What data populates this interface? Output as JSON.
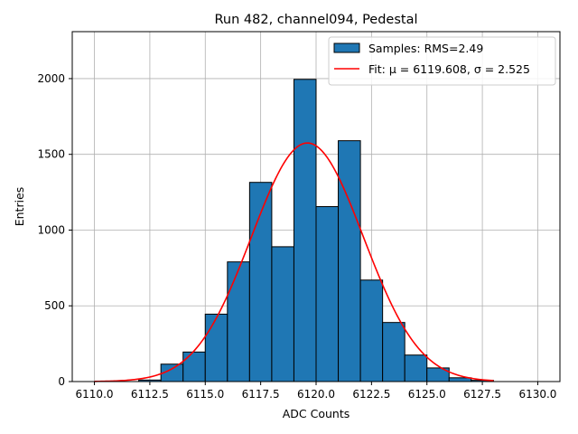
{
  "chart_data": {
    "type": "bar",
    "title": "Run 482, channel094, Pedestal",
    "xlabel": "ADC Counts",
    "ylabel": "Entries",
    "xlim": [
      6109.0,
      6131.0
    ],
    "ylim": [
      0,
      2310
    ],
    "xticks": [
      6110.0,
      6112.5,
      6115.0,
      6117.5,
      6120.0,
      6122.5,
      6125.0,
      6127.5,
      6130.0
    ],
    "xtick_labels": [
      "6110.0",
      "6112.5",
      "6115.0",
      "6117.5",
      "6120.0",
      "6122.5",
      "6125.0",
      "6127.5",
      "6130.0"
    ],
    "yticks": [
      0,
      500,
      1000,
      1500,
      2000
    ],
    "ytick_labels": [
      "0",
      "500",
      "1000",
      "1500",
      "2000"
    ],
    "grid": true,
    "legend_position": "top-right",
    "histogram": {
      "name": "Samples: RMS=2.49",
      "color": "#1f77b4",
      "edge_color": "#000000",
      "bins": [
        {
          "x0": 6112.0,
          "x1": 6113.0,
          "value": 10
        },
        {
          "x0": 6113.0,
          "x1": 6114.0,
          "value": 115
        },
        {
          "x0": 6114.0,
          "x1": 6115.0,
          "value": 195
        },
        {
          "x0": 6115.0,
          "x1": 6116.0,
          "value": 445
        },
        {
          "x0": 6116.0,
          "x1": 6117.0,
          "value": 790
        },
        {
          "x0": 6117.0,
          "x1": 6118.0,
          "value": 1315
        },
        {
          "x0": 6118.0,
          "x1": 6119.0,
          "value": 890
        },
        {
          "x0": 6119.0,
          "x1": 6120.0,
          "value": 1995
        },
        {
          "x0": 6120.0,
          "x1": 6121.0,
          "value": 1155
        },
        {
          "x0": 6121.0,
          "x1": 6122.0,
          "value": 1590
        },
        {
          "x0": 6122.0,
          "x1": 6123.0,
          "value": 670
        },
        {
          "x0": 6123.0,
          "x1": 6124.0,
          "value": 390
        },
        {
          "x0": 6124.0,
          "x1": 6125.0,
          "value": 175
        },
        {
          "x0": 6125.0,
          "x1": 6126.0,
          "value": 90
        },
        {
          "x0": 6126.0,
          "x1": 6127.0,
          "value": 25
        },
        {
          "x0": 6127.0,
          "x1": 6128.0,
          "value": 8
        }
      ]
    },
    "fit": {
      "name_prefix": "Fit: ",
      "mu_label": "μ = 6119.608",
      "sigma_label": "σ = 2.525",
      "color": "#ff0000",
      "mu": 6119.608,
      "sigma": 2.525,
      "amplitude": 1575,
      "x_range": [
        6110.0,
        6128.0
      ]
    }
  }
}
